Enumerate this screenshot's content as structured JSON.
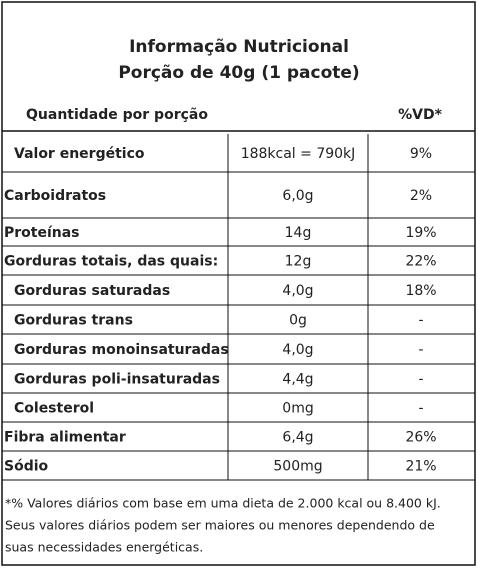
{
  "header": {
    "title": "Informação Nutricional",
    "subtitle": "Porção de 40g (1 pacote)"
  },
  "table": {
    "columns": [
      "Quantidade por porção",
      "%VD*"
    ],
    "rows": [
      [
        "Valor energético",
        "188kcal = 790kJ",
        "9%"
      ],
      [
        "Carboidratos",
        "6,0g",
        "2%"
      ],
      [
        "Proteínas",
        "14g",
        "19%"
      ],
      [
        "Gorduras totais, das quais:",
        "12g",
        "22%"
      ],
      [
        "Gorduras saturadas",
        "4,0g",
        "18%"
      ],
      [
        "Gorduras trans",
        "0g",
        "-"
      ],
      [
        "Gorduras monoinsaturadas",
        "4,0g",
        "-"
      ],
      [
        "Gorduras poli-insaturadas",
        "4,4g",
        "-"
      ],
      [
        "Colesterol",
        "0mg",
        "-"
      ],
      [
        "Fibra alimentar",
        "6,4g",
        "26%"
      ],
      [
        "Sódio",
        "500mg",
        "21%"
      ]
    ]
  },
  "footnote": [
    "*% Valores diários com base em uma dieta de 2.000 kcal ou 8.400 kJ.",
    "Seus valores diários podem ser maiores ou menores dependendo de",
    "suas necessidades energéticas."
  ]
}
